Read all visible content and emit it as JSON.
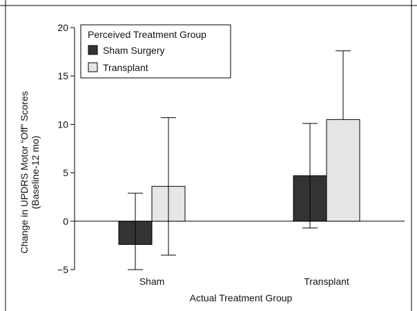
{
  "chart_data": {
    "type": "bar",
    "xlabel": "Actual Treatment Group",
    "ylabel_line1": "Change in UPDRS Motor “Off” Scores",
    "ylabel_line2": "(Baseline-12 mo)",
    "categories": [
      "Sham",
      "Transplant"
    ],
    "ylim": [
      -5,
      20
    ],
    "yticks": [
      -5,
      0,
      5,
      10,
      15,
      20
    ],
    "legend_title": "Perceived Treatment Group",
    "legend_position": "top-left",
    "series": [
      {
        "name": "Sham Surgery",
        "color": "#333333",
        "values": [
          -2.4,
          4.7
        ],
        "err_up": [
          2.9,
          10.1
        ],
        "err_down": [
          -5.0,
          -0.7
        ]
      },
      {
        "name": "Transplant",
        "color": "#e6e6e6",
        "values": [
          3.6,
          10.5
        ],
        "err_up": [
          10.7,
          17.6
        ],
        "err_down": [
          -3.5,
          10.5
        ]
      }
    ]
  }
}
